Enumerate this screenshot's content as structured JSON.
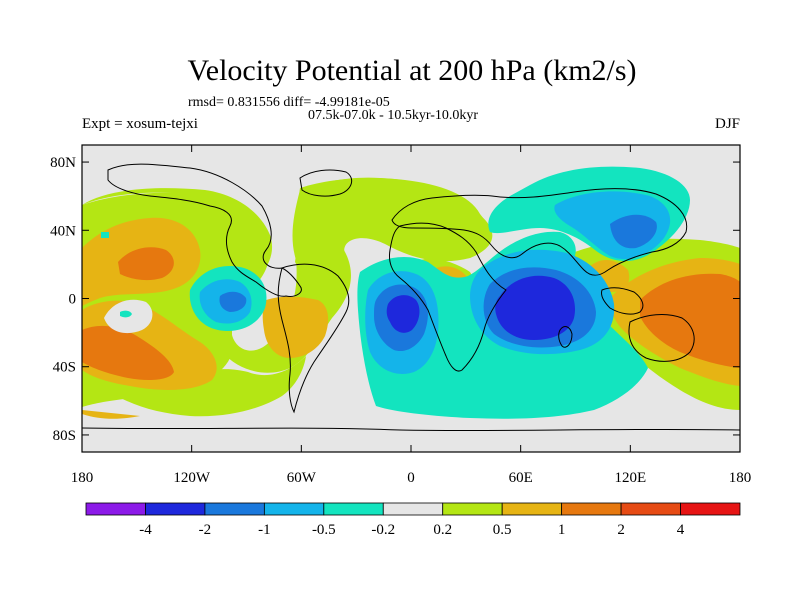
{
  "chart_data": {
    "type": "heatmap",
    "title": "Velocity Potential at 200 hPa (km2/s)",
    "rmsd_line": "rmsd= 0.831556 diff= -4.99181e-05",
    "period": "07.5k-07.0k - 10.5kyr-10.0kyr",
    "experiment": "Expt = xosum-tejxi",
    "season": "DJF",
    "x_ticks": [
      "180",
      "120W",
      "60W",
      "0",
      "60E",
      "120E",
      "180"
    ],
    "x_values": [
      -180,
      -120,
      -60,
      0,
      60,
      120,
      180
    ],
    "y_ticks": [
      "80N",
      "40N",
      "0",
      "40S",
      "80S"
    ],
    "y_values": [
      80,
      40,
      0,
      -40,
      -80
    ],
    "xlim": [
      -180,
      180
    ],
    "ylim": [
      -90,
      90
    ],
    "colorbar": {
      "labels": [
        "-4",
        "-2",
        "-1",
        "-0.5",
        "-0.2",
        "0.2",
        "0.5",
        "1",
        "2",
        "4"
      ],
      "colors": [
        "#8c1ae8",
        "#1e28dc",
        "#1a78dc",
        "#14b4ea",
        "#13e4bf",
        "#e6e6e6",
        "#b4e614",
        "#e6b414",
        "#e6780f",
        "#e64b14",
        "#e61414"
      ]
    },
    "regions": [
      {
        "name": "negative-center-indian-ocean",
        "lon": 70,
        "lat": -15,
        "min_level": "-4 to -2"
      },
      {
        "name": "negative-center-south-atlantic",
        "lon": -5,
        "lat": -10,
        "min_level": "-2 to -1"
      },
      {
        "name": "negative-center-east-asia",
        "lon": 120,
        "lat": 35,
        "min_level": "-1 to -0.5"
      },
      {
        "name": "negative-center-amazon",
        "lon": -95,
        "lat": -3,
        "min_level": "-1 to -0.5"
      },
      {
        "name": "positive-center-west-pacific",
        "lon": 160,
        "lat": -15,
        "max_level": "1 to 2"
      },
      {
        "name": "positive-center-south-pacific",
        "lon": -165,
        "lat": -35,
        "max_level": "1 to 2"
      },
      {
        "name": "positive-center-north-pacific",
        "lon": -145,
        "lat": 20,
        "max_level": "1 to 2"
      }
    ]
  }
}
